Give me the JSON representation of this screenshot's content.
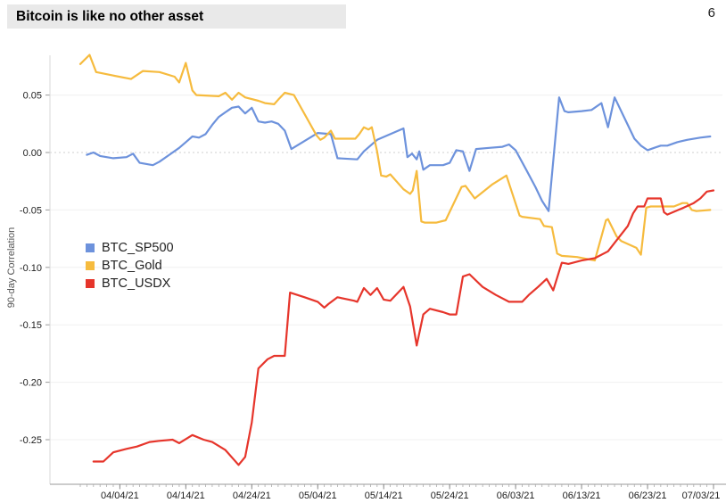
{
  "page": {
    "number": "6"
  },
  "header": {
    "title": "Bitcoin is like no other asset"
  },
  "chart_data": {
    "type": "line",
    "title": "Bitcoin is like no other asset",
    "ylabel": "90-day Correlation",
    "xlabel": "",
    "grid": "horizontal, zero-line dashed",
    "legend_position": "inside-left",
    "x_domain_days": [
      0,
      96
    ],
    "x_tick_days": [
      6,
      16,
      26,
      36,
      46,
      56,
      66,
      76,
      86,
      96
    ],
    "x_tick_labels": [
      "04/04/21",
      "04/14/21",
      "04/24/21",
      "05/04/21",
      "05/14/21",
      "05/24/21",
      "06/03/21",
      "06/13/21",
      "06/23/21",
      "07/03/21"
    ],
    "ylim": [
      -0.285,
      0.088
    ],
    "yticks": [
      {
        "v": 0.05,
        "label": "0.05"
      },
      {
        "v": 0.0,
        "label": "0.00"
      },
      {
        "v": -0.05,
        "label": "-0.05"
      },
      {
        "v": -0.1,
        "label": "-0.10"
      },
      {
        "v": -0.15,
        "label": "-0.15"
      },
      {
        "v": -0.2,
        "label": "-0.20"
      },
      {
        "v": -0.25,
        "label": "-0.25"
      }
    ],
    "series": [
      {
        "name": "BTC_SP500",
        "color": "#6d92dc",
        "points": [
          [
            1,
            -0.002
          ],
          [
            2,
            0
          ],
          [
            3,
            -0.003
          ],
          [
            5,
            -0.005
          ],
          [
            7,
            -0.004
          ],
          [
            8,
            -0.001
          ],
          [
            9,
            -0.009
          ],
          [
            11,
            -0.011
          ],
          [
            12,
            -0.008
          ],
          [
            13.5,
            -0.002
          ],
          [
            15,
            0.004
          ],
          [
            16,
            0.009
          ],
          [
            17,
            0.014
          ],
          [
            18,
            0.013
          ],
          [
            19,
            0.016
          ],
          [
            20,
            0.024
          ],
          [
            21,
            0.031
          ],
          [
            22,
            0.035
          ],
          [
            23,
            0.039
          ],
          [
            24,
            0.04
          ],
          [
            25,
            0.034
          ],
          [
            26,
            0.039
          ],
          [
            27,
            0.027
          ],
          [
            28,
            0.026
          ],
          [
            29,
            0.027
          ],
          [
            30,
            0.025
          ],
          [
            31,
            0.019
          ],
          [
            32,
            0.003
          ],
          [
            34,
            0.01
          ],
          [
            36,
            0.017
          ],
          [
            38,
            0.016
          ],
          [
            39,
            -0.005
          ],
          [
            42,
            -0.006
          ],
          [
            43,
            0.001
          ],
          [
            45,
            0.011
          ],
          [
            47,
            0.016
          ],
          [
            49,
            0.021
          ],
          [
            49.6,
            -0.004
          ],
          [
            50.3,
            -0.001
          ],
          [
            51,
            -0.006
          ],
          [
            51.4,
            0.001
          ],
          [
            52,
            -0.015
          ],
          [
            53,
            -0.011
          ],
          [
            55,
            -0.011
          ],
          [
            56,
            -0.009
          ],
          [
            57,
            0.002
          ],
          [
            58,
            0.001
          ],
          [
            59,
            -0.016
          ],
          [
            60,
            0.003
          ],
          [
            62,
            0.004
          ],
          [
            64,
            0.005
          ],
          [
            65,
            0.007
          ],
          [
            66,
            0.002
          ],
          [
            67.6,
            -0.015
          ],
          [
            69,
            -0.03
          ],
          [
            70,
            -0.042
          ],
          [
            71,
            -0.051
          ],
          [
            72.6,
            0.048
          ],
          [
            73.4,
            0.036
          ],
          [
            74,
            0.035
          ],
          [
            76,
            0.036
          ],
          [
            77.5,
            0.037
          ],
          [
            79,
            0.043
          ],
          [
            80,
            0.022
          ],
          [
            81,
            0.048
          ],
          [
            82.5,
            0.03
          ],
          [
            84,
            0.012
          ],
          [
            85,
            0.006
          ],
          [
            86,
            0.002
          ],
          [
            87,
            0.004
          ],
          [
            88,
            0.006
          ],
          [
            89,
            0.006
          ],
          [
            90.5,
            0.009
          ],
          [
            92,
            0.011
          ],
          [
            94,
            0.013
          ],
          [
            95.5,
            0.014
          ]
        ]
      },
      {
        "name": "BTC_Gold",
        "color": "#f6bb3e",
        "points": [
          [
            0,
            0.077
          ],
          [
            1.4,
            0.085
          ],
          [
            2.4,
            0.07
          ],
          [
            5,
            0.067
          ],
          [
            7.7,
            0.064
          ],
          [
            9.5,
            0.071
          ],
          [
            12,
            0.07
          ],
          [
            14.3,
            0.066
          ],
          [
            15,
            0.061
          ],
          [
            16,
            0.078
          ],
          [
            17,
            0.054
          ],
          [
            17.6,
            0.05
          ],
          [
            21,
            0.049
          ],
          [
            22,
            0.052
          ],
          [
            23,
            0.046
          ],
          [
            24,
            0.052
          ],
          [
            25,
            0.048
          ],
          [
            27,
            0.045
          ],
          [
            28,
            0.043
          ],
          [
            29.4,
            0.042
          ],
          [
            30,
            0.046
          ],
          [
            31,
            0.052
          ],
          [
            32.4,
            0.05
          ],
          [
            35.8,
            0.015
          ],
          [
            36.4,
            0.011
          ],
          [
            37,
            0.013
          ],
          [
            38,
            0.019
          ],
          [
            38.6,
            0.012
          ],
          [
            41.7,
            0.012
          ],
          [
            42.3,
            0.016
          ],
          [
            43,
            0.022
          ],
          [
            43.7,
            0.02
          ],
          [
            44.2,
            0.022
          ],
          [
            45,
            0.001
          ],
          [
            45.6,
            -0.02
          ],
          [
            46.4,
            -0.021
          ],
          [
            47,
            -0.019
          ],
          [
            49,
            -0.032
          ],
          [
            50,
            -0.036
          ],
          [
            50.4,
            -0.033
          ],
          [
            51,
            -0.016
          ],
          [
            51.7,
            -0.06
          ],
          [
            52.2,
            -0.061
          ],
          [
            54,
            -0.061
          ],
          [
            55.4,
            -0.059
          ],
          [
            57.8,
            -0.03
          ],
          [
            58.4,
            -0.029
          ],
          [
            59.8,
            -0.04
          ],
          [
            62.4,
            -0.028
          ],
          [
            64.6,
            -0.02
          ],
          [
            66.6,
            -0.055
          ],
          [
            67,
            -0.056
          ],
          [
            69.7,
            -0.058
          ],
          [
            70.3,
            -0.064
          ],
          [
            71.5,
            -0.065
          ],
          [
            72.3,
            -0.088
          ],
          [
            73,
            -0.09
          ],
          [
            75.3,
            -0.091
          ],
          [
            78,
            -0.094
          ],
          [
            79.7,
            -0.059
          ],
          [
            80,
            -0.058
          ],
          [
            81.3,
            -0.073
          ],
          [
            82,
            -0.077
          ],
          [
            84.3,
            -0.083
          ],
          [
            85,
            -0.089
          ],
          [
            85.8,
            -0.048
          ],
          [
            86.5,
            -0.047
          ],
          [
            90,
            -0.047
          ],
          [
            91.3,
            -0.044
          ],
          [
            92,
            -0.044
          ],
          [
            92.7,
            -0.05
          ],
          [
            93.4,
            -0.051
          ],
          [
            95.5,
            -0.05
          ]
        ]
      },
      {
        "name": "BTC_USDX",
        "color": "#e6352b",
        "points": [
          [
            2,
            -0.269
          ],
          [
            3.5,
            -0.269
          ],
          [
            5,
            -0.261
          ],
          [
            7,
            -0.258
          ],
          [
            8.6,
            -0.256
          ],
          [
            10.5,
            -0.252
          ],
          [
            12,
            -0.251
          ],
          [
            14,
            -0.25
          ],
          [
            15,
            -0.253
          ],
          [
            17,
            -0.246
          ],
          [
            18.7,
            -0.25
          ],
          [
            20,
            -0.252
          ],
          [
            22,
            -0.259
          ],
          [
            24,
            -0.272
          ],
          [
            25,
            -0.265
          ],
          [
            26,
            -0.235
          ],
          [
            27,
            -0.188
          ],
          [
            28.4,
            -0.18
          ],
          [
            29.4,
            -0.177
          ],
          [
            31,
            -0.177
          ],
          [
            31.8,
            -0.122
          ],
          [
            34,
            -0.126
          ],
          [
            36,
            -0.13
          ],
          [
            37,
            -0.135
          ],
          [
            37.6,
            -0.132
          ],
          [
            39,
            -0.126
          ],
          [
            41.5,
            -0.129
          ],
          [
            42,
            -0.13
          ],
          [
            43,
            -0.118
          ],
          [
            44,
            -0.124
          ],
          [
            45,
            -0.118
          ],
          [
            46,
            -0.128
          ],
          [
            47,
            -0.129
          ],
          [
            49,
            -0.117
          ],
          [
            50,
            -0.134
          ],
          [
            51,
            -0.168
          ],
          [
            52,
            -0.141
          ],
          [
            53,
            -0.136
          ],
          [
            55,
            -0.139
          ],
          [
            56,
            -0.141
          ],
          [
            57,
            -0.141
          ],
          [
            58,
            -0.108
          ],
          [
            59,
            -0.106
          ],
          [
            61,
            -0.117
          ],
          [
            63,
            -0.124
          ],
          [
            65,
            -0.13
          ],
          [
            67,
            -0.13
          ],
          [
            68,
            -0.124
          ],
          [
            69.4,
            -0.117
          ],
          [
            70.7,
            -0.11
          ],
          [
            71.7,
            -0.12
          ],
          [
            73,
            -0.096
          ],
          [
            74,
            -0.097
          ],
          [
            76,
            -0.094
          ],
          [
            78,
            -0.092
          ],
          [
            80,
            -0.086
          ],
          [
            81.5,
            -0.075
          ],
          [
            83,
            -0.064
          ],
          [
            83.8,
            -0.053
          ],
          [
            84.5,
            -0.047
          ],
          [
            85.5,
            -0.047
          ],
          [
            86,
            -0.04
          ],
          [
            87,
            -0.04
          ],
          [
            88,
            -0.04
          ],
          [
            88.5,
            -0.052
          ],
          [
            89,
            -0.054
          ],
          [
            91.5,
            -0.048
          ],
          [
            93,
            -0.044
          ],
          [
            94,
            -0.04
          ],
          [
            95,
            -0.034
          ],
          [
            96,
            -0.033
          ]
        ]
      }
    ],
    "style": {
      "grid_color": "#f0f0f0",
      "zero_line_color": "#cfcfcf",
      "axis_y_color": "#d8d8d8",
      "axis_x_color": "#9a9a9a",
      "tick_color": "#999999",
      "label_color": "#222222",
      "title_bg": "#e9e9e9",
      "line_width": 2.2
    }
  }
}
